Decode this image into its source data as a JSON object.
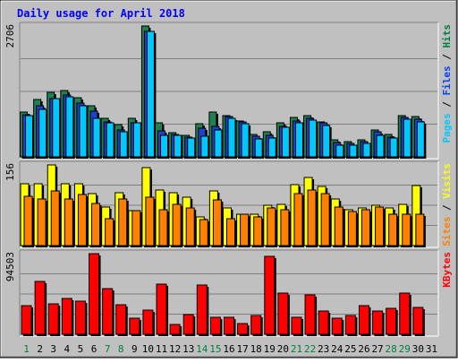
{
  "chart_data": {
    "type": "bar",
    "title": "Daily usage for April 2018",
    "categories": [
      "1",
      "2",
      "3",
      "4",
      "5",
      "6",
      "7",
      "8",
      "9",
      "10",
      "11",
      "12",
      "13",
      "14",
      "15",
      "16",
      "17",
      "18",
      "19",
      "20",
      "21",
      "22",
      "23",
      "24",
      "25",
      "26",
      "27",
      "28",
      "29",
      "30",
      "31"
    ],
    "weekend_days": [
      "1",
      "7",
      "8",
      "14",
      "15",
      "21",
      "22",
      "28",
      "29"
    ],
    "panels": [
      {
        "name": "Hits / Files / Pages",
        "axis_max_label": "2706",
        "ylim": [
          0,
          2706
        ],
        "side_label": [
          {
            "text": "Pages",
            "color": "#00c8ff"
          },
          {
            "text": " / ",
            "color": "#000000"
          },
          {
            "text": "Files",
            "color": "#0040ff"
          },
          {
            "text": " / ",
            "color": "#000000"
          },
          {
            "text": "Hits",
            "color": "#008040"
          }
        ],
        "series": [
          {
            "name": "Hits",
            "color": "#208050",
            "values": [
              930,
              1190,
              1330,
              1370,
              1220,
              1060,
              790,
              660,
              790,
              2706,
              700,
              500,
              450,
              690,
              930,
              860,
              750,
              470,
              520,
              700,
              810,
              850,
              720,
              350,
              320,
              350,
              560,
              470,
              860,
              830
            ]
          },
          {
            "name": "Files",
            "color": "#2040d0",
            "values": [
              870,
              1050,
              1200,
              1280,
              1110,
              940,
              730,
              550,
              710,
              2600,
              530,
              460,
              400,
              600,
              630,
              840,
              720,
              420,
              440,
              630,
              740,
              800,
              700,
              300,
              270,
              320,
              510,
              410,
              820,
              770
            ]
          },
          {
            "name": "Pages",
            "color": "#00c8ff",
            "values": [
              860,
              980,
              1200,
              1250,
              1050,
              800,
              700,
              520,
              700,
              2600,
              450,
              440,
              390,
              430,
              560,
              800,
              690,
              370,
              380,
              620,
              700,
              760,
              650,
              250,
              240,
              270,
              450,
              380,
              780,
              720
            ]
          }
        ]
      },
      {
        "name": "Visits / Sites",
        "axis_max_label": "156",
        "ylim": [
          0,
          156
        ],
        "side_label": [
          {
            "text": "Sites",
            "color": "#ff8000"
          },
          {
            "text": " / ",
            "color": "#000000"
          },
          {
            "text": "Visits",
            "color": "#ffff00"
          }
        ],
        "series": [
          {
            "name": "Visits",
            "color": "#ffff00",
            "values": [
              120,
              120,
              156,
              120,
              120,
              100,
              75,
              102,
              68,
              150,
              108,
              102,
              93,
              55,
              105,
              72,
              60,
              60,
              78,
              80,
              118,
              132,
              115,
              90,
              70,
              72,
              78,
              72,
              80,
              116
            ]
          },
          {
            "name": "Sites",
            "color": "#ff8000",
            "values": [
              96,
              90,
              105,
              90,
              98,
              82,
              52,
              90,
              68,
              93,
              70,
              80,
              73,
              50,
              88,
              52,
              60,
              56,
              72,
              70,
              100,
              108,
              100,
              75,
              65,
              70,
              75,
              60,
              60,
              60
            ]
          }
        ]
      },
      {
        "name": "KBytes",
        "axis_max_label": "94503",
        "ylim": [
          0,
          94503
        ],
        "side_label": [
          {
            "text": "KBytes",
            "color": "#ff0000"
          }
        ],
        "series": [
          {
            "name": "KBytes",
            "color": "#ff0000",
            "values": [
              33500,
              62000,
              36000,
              42000,
              39000,
              94500,
              53500,
              35000,
              19000,
              28500,
              58500,
              12000,
              23000,
              58000,
              20000,
              20000,
              13000,
              22000,
              91500,
              48000,
              20000,
              46000,
              27000,
              19000,
              22000,
              33500,
              27000,
              30000,
              48000,
              31500
            ]
          }
        ]
      }
    ]
  }
}
